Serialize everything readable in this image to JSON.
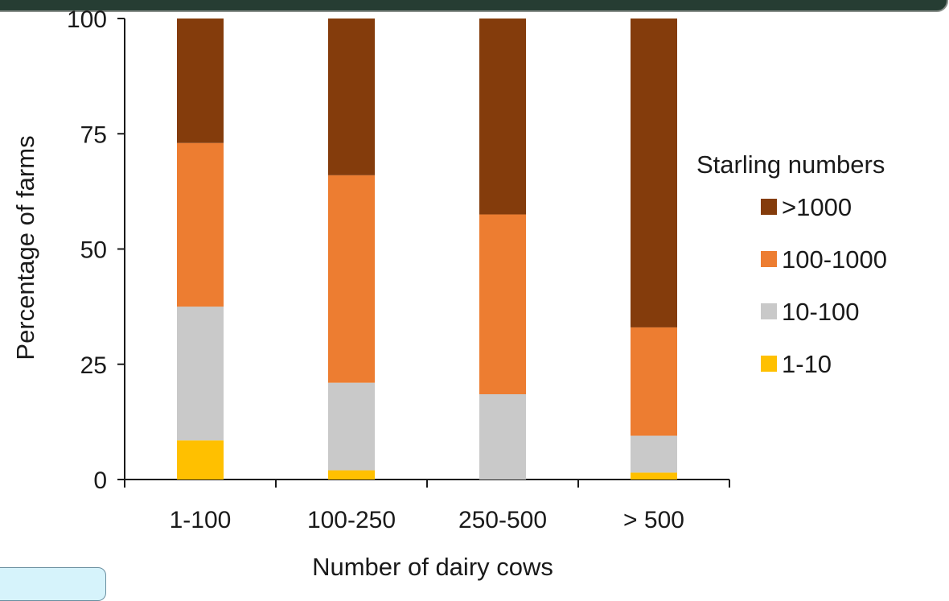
{
  "chart_data": {
    "type": "bar",
    "stacked": true,
    "categories": [
      "1-100",
      "100-250",
      "250-500",
      "> 500"
    ],
    "series": [
      {
        "name": "1-10",
        "color": "#ffc000",
        "values": [
          8.5,
          2,
          0,
          1.5
        ]
      },
      {
        "name": "10-100",
        "color": "#c9c9c9",
        "values": [
          29,
          19,
          18.5,
          8
        ]
      },
      {
        "name": "100-1000",
        "color": "#ed7d31",
        "values": [
          35.5,
          45,
          39,
          23.5
        ]
      },
      {
        "name": ">1000",
        "color": "#843c0c",
        "values": [
          27,
          34,
          42.5,
          67
        ]
      }
    ],
    "xlabel": "Number of dairy cows",
    "ylabel": "Percentage of farms",
    "ylim": [
      0,
      100
    ],
    "yticks": [
      0,
      25,
      50,
      75,
      100
    ],
    "legend_title": "Starling numbers",
    "legend_position": "right",
    "legend_order": [
      ">1000",
      "100-1000",
      "10-100",
      "1-10"
    ],
    "grid": false
  }
}
